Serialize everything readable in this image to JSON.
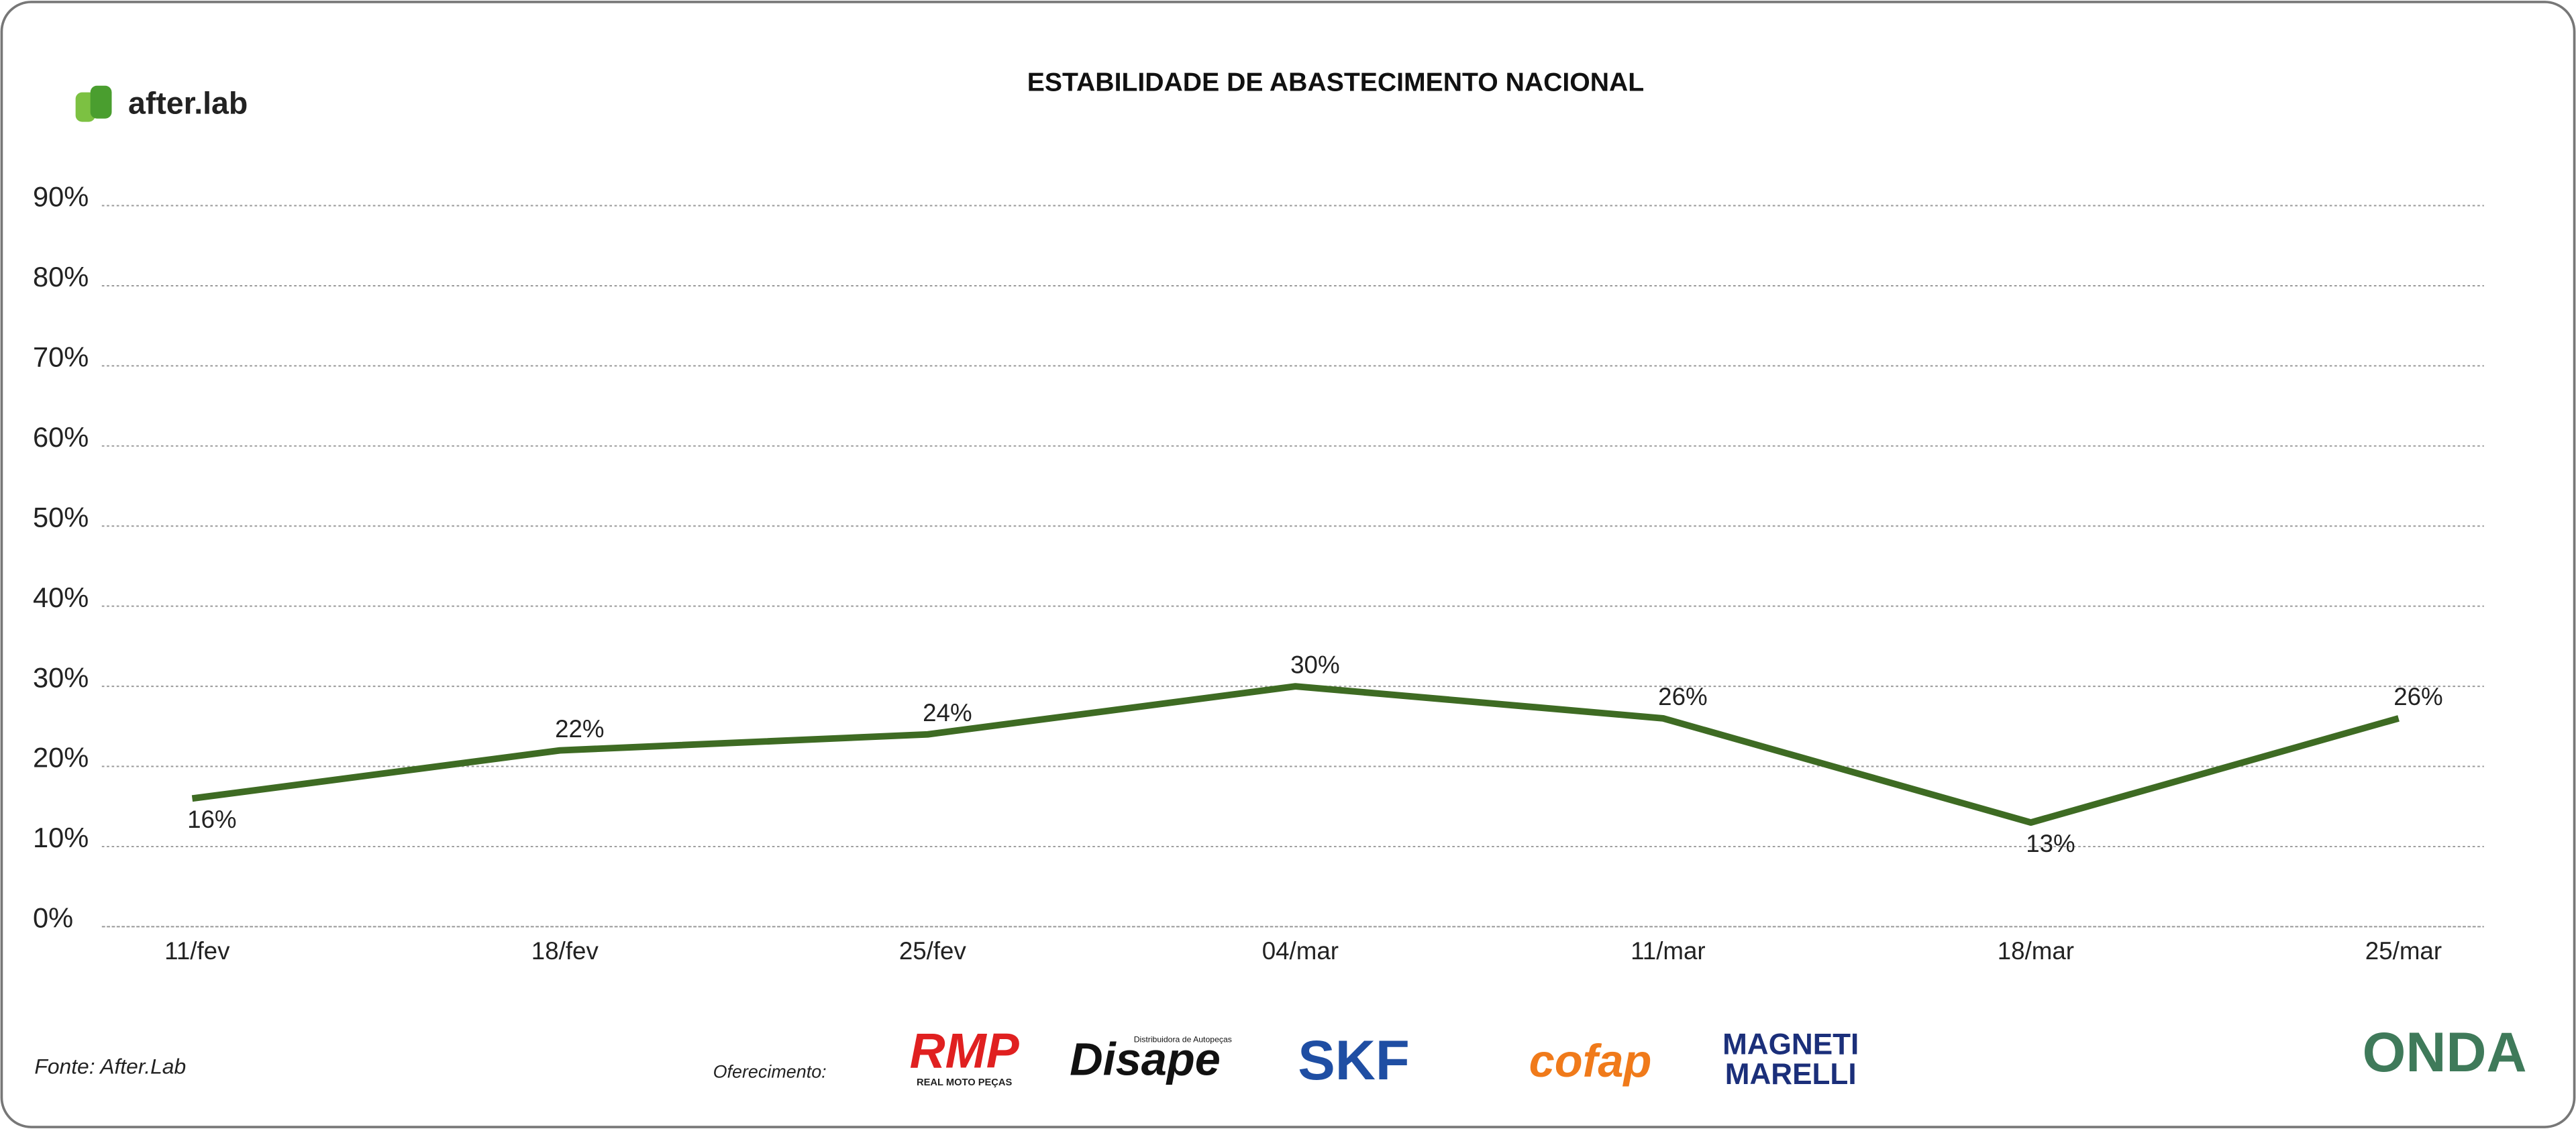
{
  "chart_data": {
    "type": "line",
    "title": "ESTABILIDADE DE ABASTECIMENTO NACIONAL",
    "categories": [
      "11/fev",
      "18/fev",
      "25/fev",
      "04/mar",
      "11/mar",
      "18/mar",
      "25/mar"
    ],
    "values": [
      16,
      22,
      24,
      30,
      26,
      13,
      26
    ],
    "value_labels": [
      "16%",
      "22%",
      "24%",
      "30%",
      "26%",
      "13%",
      "26%"
    ],
    "color": "#3e6b23",
    "ylim": [
      0,
      90
    ],
    "yticks": [
      {
        "value": 0,
        "label": "0%"
      },
      {
        "value": 10,
        "label": "10%"
      },
      {
        "value": 20,
        "label": "20%"
      },
      {
        "value": 30,
        "label": "30%"
      },
      {
        "value": 40,
        "label": "40%"
      },
      {
        "value": 50,
        "label": "50%"
      },
      {
        "value": 60,
        "label": "60%"
      },
      {
        "value": 70,
        "label": "70%"
      },
      {
        "value": 80,
        "label": "80%"
      },
      {
        "value": 90,
        "label": "90%"
      }
    ],
    "grid": true
  },
  "logo": "after.lab",
  "source": "Fonte: After.Lab",
  "sponsors_label": "Oferecimento:",
  "sponsors": [
    "RMP",
    "REAL MOTO PEÇAS",
    "Disape",
    "Distribuidora de Autopeças",
    "SKF",
    "cofap",
    "MAGNETI",
    "MARELLI"
  ],
  "brand": "ONDA"
}
